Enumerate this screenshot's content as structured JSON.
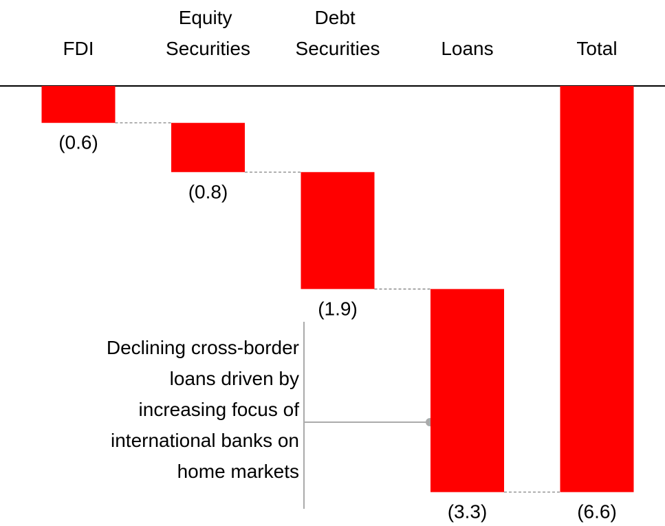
{
  "chart_data": {
    "type": "waterfall",
    "categories": [
      "FDI",
      "Equity Securities",
      "Debt Securities",
      "Loans",
      "Total"
    ],
    "values": [
      -0.6,
      -0.8,
      -1.9,
      -3.3,
      -6.6
    ],
    "value_labels": [
      "(0.6)",
      "(0.8)",
      "(1.9)",
      "(3.3)",
      "(6.6)"
    ],
    "color": "#ff0000",
    "ylim": [
      -7,
      0
    ],
    "annotation": [
      "Declining cross-border",
      "loans driven by",
      "increasing focus of",
      "international banks on",
      "home markets"
    ]
  }
}
